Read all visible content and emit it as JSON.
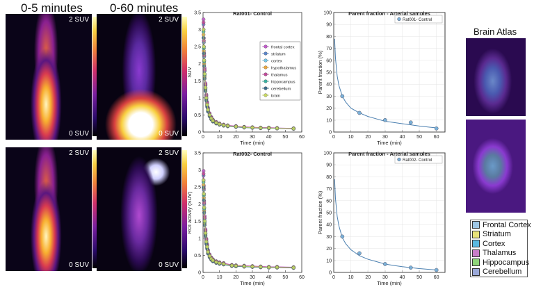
{
  "headers": {
    "early": "0-5 minutes",
    "full": "0-60 minutes",
    "atlas": "Brain Atlas"
  },
  "scale_labels": {
    "top": "2 SUV",
    "bottom": "0 SUV"
  },
  "atlas_legend": [
    {
      "label": "Frontal Cortex",
      "color": "#9ec7e6"
    },
    {
      "label": "Striatum",
      "color": "#e8e27a"
    },
    {
      "label": "Cortex",
      "color": "#5ab9e0"
    },
    {
      "label": "Thalamus",
      "color": "#c97dc9"
    },
    {
      "label": "Hippocampus",
      "color": "#8fd67a"
    },
    {
      "label": "Cerebellum",
      "color": "#9aa8d8"
    }
  ],
  "chart_data": [
    {
      "id": "tac1",
      "type": "line",
      "title": "Rat001- Control",
      "xlabel": "Time (min)",
      "ylabel": "SUV",
      "xlim": [
        0,
        60
      ],
      "ylim": [
        0,
        3.5
      ],
      "xticks": [
        0,
        10,
        20,
        30,
        40,
        50,
        60
      ],
      "yticks": [
        0,
        0.5,
        1,
        1.5,
        2,
        2.5,
        3,
        3.5
      ],
      "legend_position": "top-right",
      "legend": [
        {
          "name": "frontal cortex",
          "color": "#c05ac8"
        },
        {
          "name": "striatum",
          "color": "#5a84c8"
        },
        {
          "name": "cortex",
          "color": "#74c6e8"
        },
        {
          "name": "hypothalamus",
          "color": "#e8a640"
        },
        {
          "name": "thalamus",
          "color": "#c04a9a"
        },
        {
          "name": "hippocampus",
          "color": "#3ab0a0"
        },
        {
          "name": "cerebellum",
          "color": "#3a6a8a"
        },
        {
          "name": "brain",
          "color": "#c8d860"
        }
      ],
      "x": [
        0.3,
        0.5,
        0.7,
        1,
        1.5,
        2,
        2.5,
        3,
        4,
        5,
        6,
        8,
        10,
        12.5,
        15,
        20,
        25,
        30,
        35,
        40,
        45,
        55
      ],
      "y": [
        3.0,
        2.5,
        2.1,
        1.7,
        1.3,
        1.0,
        0.8,
        0.65,
        0.5,
        0.4,
        0.33,
        0.27,
        0.23,
        0.2,
        0.18,
        0.16,
        0.14,
        0.13,
        0.12,
        0.12,
        0.11,
        0.1
      ]
    },
    {
      "id": "pf1",
      "type": "scatter",
      "title": "Parent fraction - Arterial samples",
      "xlabel": "Time (min)",
      "ylabel": "Parent fraction (%)",
      "xlim": [
        0,
        65
      ],
      "ylim": [
        0,
        100
      ],
      "xticks": [
        0,
        10,
        20,
        30,
        40,
        50,
        60
      ],
      "yticks": [
        0,
        10,
        20,
        30,
        40,
        50,
        60,
        70,
        80,
        90,
        100
      ],
      "legend_position": "top-right",
      "series_name": "Rat001- Control",
      "color": "#7ab0d8",
      "points": {
        "x": [
          5,
          15,
          30,
          45,
          60
        ],
        "y": [
          30,
          16,
          10,
          8,
          3
        ]
      },
      "fit": {
        "x": [
          0.5,
          1,
          2,
          3,
          5,
          7,
          10,
          15,
          20,
          25,
          30,
          35,
          40,
          45,
          50,
          55,
          60
        ],
        "y": [
          78,
          62,
          47,
          39,
          30,
          25,
          20,
          16,
          13,
          11,
          9,
          8,
          7,
          6,
          5,
          4.2,
          3.5
        ]
      }
    },
    {
      "id": "tac2",
      "type": "line",
      "title": "Rat002- Control",
      "xlabel": "Time (min)",
      "ylabel": "ROI activity (SUV)",
      "xlim": [
        0,
        60
      ],
      "ylim": [
        0,
        3.5
      ],
      "xticks": [
        0,
        10,
        20,
        30,
        40,
        50,
        60
      ],
      "yticks": [
        0,
        0.5,
        1,
        1.5,
        2,
        2.5,
        3,
        3.5
      ],
      "x": [
        0.3,
        0.5,
        0.7,
        1,
        1.5,
        2,
        2.5,
        3,
        4,
        5,
        6,
        8,
        10,
        12.5,
        17.5,
        20,
        25,
        30,
        35,
        40,
        45,
        55
      ],
      "y": [
        2.7,
        2.3,
        1.9,
        1.5,
        1.15,
        0.9,
        0.75,
        0.6,
        0.48,
        0.4,
        0.35,
        0.3,
        0.27,
        0.25,
        0.2,
        0.19,
        0.18,
        0.17,
        0.16,
        0.15,
        0.15,
        0.14
      ]
    },
    {
      "id": "pf2",
      "type": "scatter",
      "title": "Parent fraction - Arterial samples",
      "xlabel": "Time (min)",
      "ylabel": "Parent fraction (%)",
      "xlim": [
        0,
        65
      ],
      "ylim": [
        0,
        100
      ],
      "xticks": [
        0,
        10,
        20,
        30,
        40,
        50,
        60
      ],
      "yticks": [
        0,
        10,
        20,
        30,
        40,
        50,
        60,
        70,
        80,
        90,
        100
      ],
      "legend_position": "top-right",
      "series_name": "Rat002- Control",
      "color": "#7ab0d8",
      "points": {
        "x": [
          5,
          15,
          30,
          45,
          60
        ],
        "y": [
          30,
          16,
          7,
          4,
          2
        ]
      },
      "fit": {
        "x": [
          0.5,
          1,
          2,
          3,
          5,
          7,
          10,
          15,
          20,
          25,
          30,
          35,
          40,
          45,
          50,
          55,
          60
        ],
        "y": [
          78,
          62,
          47,
          39,
          29,
          24,
          19,
          14,
          11,
          9,
          7,
          5.8,
          4.8,
          4,
          3.2,
          2.6,
          2
        ]
      }
    }
  ]
}
